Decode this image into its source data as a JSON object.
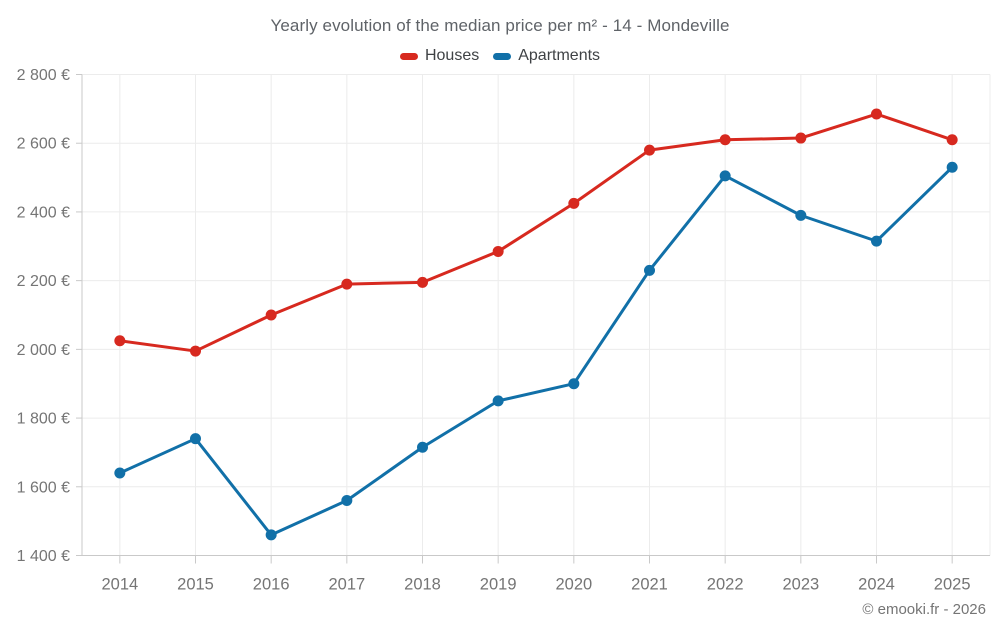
{
  "chart_data": {
    "type": "line",
    "title": "Yearly evolution of the median price per m² - 14 - Mondeville",
    "categories": [
      "2014",
      "2015",
      "2016",
      "2017",
      "2018",
      "2019",
      "2020",
      "2021",
      "2022",
      "2023",
      "2024",
      "2025"
    ],
    "series": [
      {
        "name": "Houses",
        "color": "#d7291f",
        "values": [
          2025,
          1995,
          2100,
          2190,
          2195,
          2285,
          2425,
          2580,
          2610,
          2615,
          2685,
          2610
        ]
      },
      {
        "name": "Apartments",
        "color": "#1170a8",
        "values": [
          1640,
          1740,
          1460,
          1560,
          1715,
          1850,
          1900,
          2230,
          2505,
          2390,
          2315,
          2530
        ]
      }
    ],
    "xlabel": "",
    "ylabel": "",
    "ylim": [
      1400,
      2800
    ],
    "ytick_step": 200,
    "ytick_values": [
      2800,
      2600,
      2400,
      2200,
      2000,
      1800,
      1600,
      1400
    ],
    "ytick_labels": [
      "2 800 €",
      "2 600 €",
      "2 400 €",
      "2 200 €",
      "2 000 €",
      "1 800 €",
      "1 600 €",
      "1 400 €"
    ],
    "grid": true,
    "legend_position": "top",
    "footer": "© emooki.fr - 2026",
    "colors": {
      "grid_line": "#ececec",
      "axis_line": "#c9c9c9",
      "axis_text": "#757575",
      "title_text": "#5f6368"
    }
  }
}
